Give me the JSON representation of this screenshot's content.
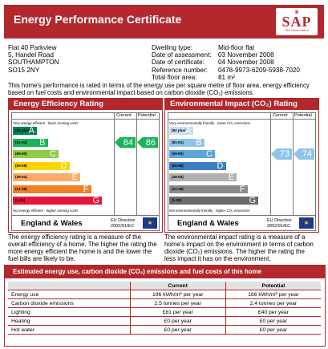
{
  "header": {
    "title": "Energy Performance Certificate",
    "logo_text": "SAP",
    "logo_subtext": "HM Government"
  },
  "address": {
    "line1": "Flat 40 Parkview",
    "line2": "5, Handel Road",
    "line3": "",
    "line4": "SOUTHAMPTON",
    "line5": "SO15 2NY"
  },
  "details": {
    "labels": [
      "Dwelling type:",
      "Date of assessment:",
      "Date of certificate:",
      "Reference number:",
      "Total floor area:"
    ],
    "values": [
      "Mid-floor flat",
      "03 November 2008",
      "04 November 2008",
      "0478-9973-6209-5938-7020",
      "81 m²"
    ]
  },
  "intro": "This home's performance is rated in terms of the energy use per square metre of floor area, energy efficiency based on fuel costs and environmental impact based on carbon dioxide (CO₂) emissions.",
  "efficiency": {
    "title": "Energy Efficiency Rating",
    "col_current": "Current",
    "col_potential": "Potential",
    "top_note": "Very energy efficient - lower running costs",
    "bottom_note": "Not energy efficient - higher running costs",
    "bands": [
      {
        "range": "(92 plus)",
        "letter": "A",
        "color": "#008054"
      },
      {
        "range": "(81-91)",
        "letter": "B",
        "color": "#19b459"
      },
      {
        "range": "(69-80)",
        "letter": "C",
        "color": "#8dce46"
      },
      {
        "range": "(55-68)",
        "letter": "D",
        "color": "#ffd500"
      },
      {
        "range": "(39-54)",
        "letter": "E",
        "color": "#fcaa65"
      },
      {
        "range": "(21-38)",
        "letter": "F",
        "color": "#ef8023"
      },
      {
        "range": "(1-20)",
        "letter": "G",
        "color": "#e9153b"
      }
    ],
    "current": 84,
    "potential": 86,
    "arrow_color": "#19b459",
    "region": "England & Wales",
    "directive": "EU Directive\n2002/91/EC",
    "description": "The energy efficiency rating is a measure of the overall efficiency of a home. The higher the rating the more energy efficient the home is and the lower the fuel bills are likely to be."
  },
  "environment": {
    "title": "Environmental Impact (CO₂) Rating",
    "col_current": "Current",
    "col_potential": "Potential",
    "top_note": "Very environmentally friendly - lower CO₂ emissions",
    "bottom_note": "Not environmentally friendly - higher CO₂ emissions",
    "bands": [
      {
        "range": "(92 plus)",
        "letter": "A",
        "color": "#c9dff2"
      },
      {
        "range": "(81-91)",
        "letter": "B",
        "color": "#8ec4e9"
      },
      {
        "range": "(69-80)",
        "letter": "C",
        "color": "#5fa5d9"
      },
      {
        "range": "(55-68)",
        "letter": "D",
        "color": "#3a7fbf"
      },
      {
        "range": "(39-54)",
        "letter": "E",
        "color": "#b0b0b0"
      },
      {
        "range": "(21-38)",
        "letter": "F",
        "color": "#8a8a8a"
      },
      {
        "range": "(1-20)",
        "letter": "G",
        "color": "#6b6b6b"
      }
    ],
    "current": 73,
    "potential": 74,
    "arrow_color": "#8ec4e9",
    "region": "England & Wales",
    "directive": "EU Directive\n2002/91/EC",
    "description": "The environmental impact rating is a measure of a home's impact on the environment in terms of carbon dioxide (CO₂) emissions. The higher the rating the less impact it has on the environment."
  },
  "costs": {
    "title": "Estimated energy use, carbon dioxide (CO₂) emissions and fuel costs of this home",
    "col_current": "Current",
    "col_potential": "Potential",
    "rows": [
      {
        "label": "Energy use",
        "current": "196 kWh/m² per year",
        "potential": "186 kWh/m² per year"
      },
      {
        "label": "Carbon dioxide emissions",
        "current": "2.5 tonnes per year",
        "potential": "2.4 tonnes per year"
      },
      {
        "label": "Lighting",
        "current": "£81 per year",
        "potential": "£40 per year"
      },
      {
        "label": "Heating",
        "current": "£0 per year",
        "potential": "£0 per year"
      },
      {
        "label": "Hot water",
        "current": "£0 per year",
        "potential": "£0 per year"
      }
    ]
  }
}
